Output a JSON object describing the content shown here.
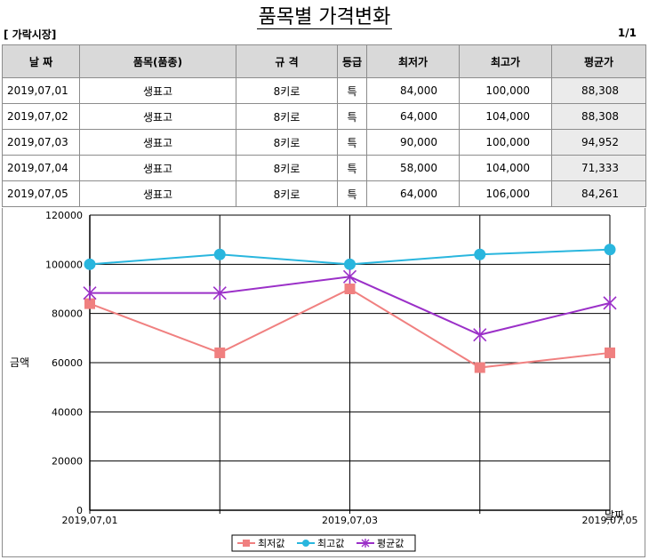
{
  "header": {
    "title": "품목별 가격변화",
    "market": "[ 가락시장]",
    "page": "1/1"
  },
  "table": {
    "columns": [
      "날  짜",
      "품목(품종)",
      "규  격",
      "등급",
      "최저가",
      "최고가",
      "평균가"
    ],
    "rows": [
      [
        "2019,07,01",
        "생표고",
        "8키로",
        "특",
        "84,000",
        "100,000",
        "88,308"
      ],
      [
        "2019,07,02",
        "생표고",
        "8키로",
        "특",
        "64,000",
        "104,000",
        "88,308"
      ],
      [
        "2019,07,03",
        "생표고",
        "8키로",
        "특",
        "90,000",
        "100,000",
        "94,952"
      ],
      [
        "2019,07,04",
        "생표고",
        "8키로",
        "특",
        "58,000",
        "104,000",
        "71,333"
      ],
      [
        "2019,07,05",
        "생표고",
        "8키로",
        "특",
        "64,000",
        "106,000",
        "84,261"
      ]
    ]
  },
  "chart_data": {
    "type": "line",
    "x": [
      "2019,07,01",
      "2019,07,02",
      "2019,07,03",
      "2019,07,04",
      "2019,07,05"
    ],
    "x_tick_labels": [
      "2019,07,01",
      "",
      "2019,07,03",
      "",
      "2019,07,05"
    ],
    "xlabel": "날짜",
    "ylabel": "금액",
    "ylim": [
      0,
      120000
    ],
    "yticks": [
      0,
      20000,
      40000,
      60000,
      80000,
      100000,
      120000
    ],
    "grid": true,
    "legend_position": "bottom",
    "series": [
      {
        "name": "최저값",
        "color": "#f08080",
        "marker": "square",
        "values": [
          84000,
          64000,
          90000,
          58000,
          64000
        ]
      },
      {
        "name": "최고값",
        "color": "#29b6de",
        "marker": "circle",
        "values": [
          100000,
          104000,
          100000,
          104000,
          106000
        ]
      },
      {
        "name": "평균값",
        "color": "#9b30c8",
        "marker": "star",
        "values": [
          88308,
          88308,
          94952,
          71333,
          84261
        ]
      }
    ]
  }
}
